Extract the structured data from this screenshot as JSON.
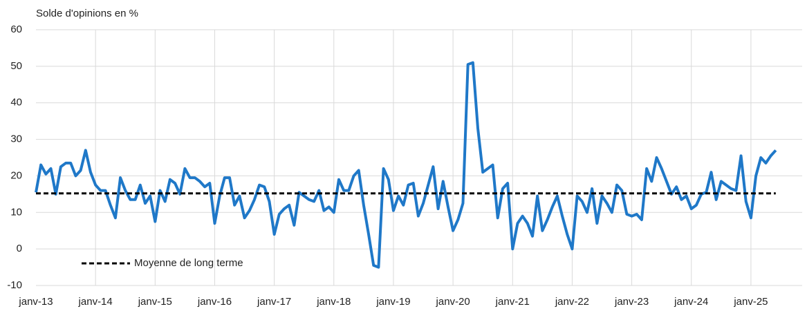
{
  "chart_data": {
    "type": "line",
    "y_axis_label": "Solde d'opinions en %",
    "categories": [
      "janv-13",
      null,
      null,
      null,
      null,
      null,
      null,
      null,
      null,
      null,
      null,
      null,
      "janv-14",
      null,
      null,
      null,
      null,
      null,
      null,
      null,
      null,
      null,
      null,
      null,
      "janv-15",
      null,
      null,
      null,
      null,
      null,
      null,
      null,
      null,
      null,
      null,
      null,
      "janv-16",
      null,
      null,
      null,
      null,
      null,
      null,
      null,
      null,
      null,
      null,
      null,
      "janv-17",
      null,
      null,
      null,
      null,
      null,
      null,
      null,
      null,
      null,
      null,
      null,
      "janv-18",
      null,
      null,
      null,
      null,
      null,
      null,
      null,
      null,
      null,
      null,
      null,
      "janv-19",
      null,
      null,
      null,
      null,
      null,
      null,
      null,
      null,
      null,
      null,
      null,
      "janv-20",
      null,
      null,
      null,
      null,
      null,
      null,
      null,
      null,
      null,
      null,
      null,
      "janv-21",
      null,
      null,
      null,
      null,
      null,
      null,
      null,
      null,
      null,
      null,
      null,
      "janv-22",
      null,
      null,
      null,
      null,
      null,
      null,
      null,
      null,
      null,
      null,
      null,
      "janv-23",
      null,
      null,
      null,
      null,
      null,
      null,
      null,
      null,
      null,
      null,
      null,
      "janv-24",
      null,
      null,
      null,
      null,
      null,
      null,
      null,
      null,
      null,
      null,
      null,
      "janv-25",
      null,
      null,
      null,
      null,
      null
    ],
    "series": [
      {
        "color": "#1f78c8",
        "values": [
          15.5,
          23,
          20.5,
          22,
          15,
          22.5,
          23.5,
          23.5,
          20,
          21.5,
          27,
          21,
          17.5,
          16,
          16,
          12,
          8.5,
          19.5,
          16,
          13.5,
          13.5,
          17.5,
          12.5,
          14.5,
          7.5,
          16,
          13,
          19,
          18,
          15,
          22,
          19.5,
          19.5,
          18.5,
          17,
          18,
          7,
          14.5,
          19.5,
          19.5,
          12,
          14.5,
          8.5,
          10.5,
          13.5,
          17.5,
          17,
          13,
          4,
          9.5,
          11,
          12,
          6.5,
          15.5,
          14.5,
          13.5,
          13,
          16,
          10.5,
          11.5,
          10,
          19,
          16,
          16,
          20,
          21.5,
          12,
          4,
          -4.5,
          -5,
          22,
          19,
          10.5,
          14.5,
          12,
          17.5,
          18,
          9,
          12.5,
          17.5,
          22.5,
          11,
          18.5,
          11.5,
          5,
          8,
          12.5,
          50.5,
          51,
          33,
          21,
          22,
          23,
          8.5,
          16.5,
          18,
          0,
          7,
          9,
          7,
          3.5,
          14.5,
          5,
          8,
          11.5,
          14.5,
          9,
          4,
          0,
          14.5,
          13,
          10,
          16.5,
          7,
          14.5,
          12.5,
          10,
          17.5,
          16,
          9.5,
          9,
          9.5,
          8,
          22,
          18.5,
          25,
          22,
          18.5,
          15,
          17,
          13.5,
          14.5,
          11,
          12,
          15,
          15.5,
          21,
          13.5,
          18.5,
          17.5,
          16.5,
          16,
          25.5,
          13,
          8.5,
          20,
          25,
          23.5,
          25.5,
          27
        ]
      }
    ],
    "reference_line": {
      "name": "Moyenne de long terme",
      "value": 15.2,
      "color": "#000000"
    },
    "ylim": [
      -10,
      60
    ],
    "yticks": [
      -10,
      0,
      10,
      20,
      30,
      40,
      50,
      60
    ],
    "grid": true
  }
}
